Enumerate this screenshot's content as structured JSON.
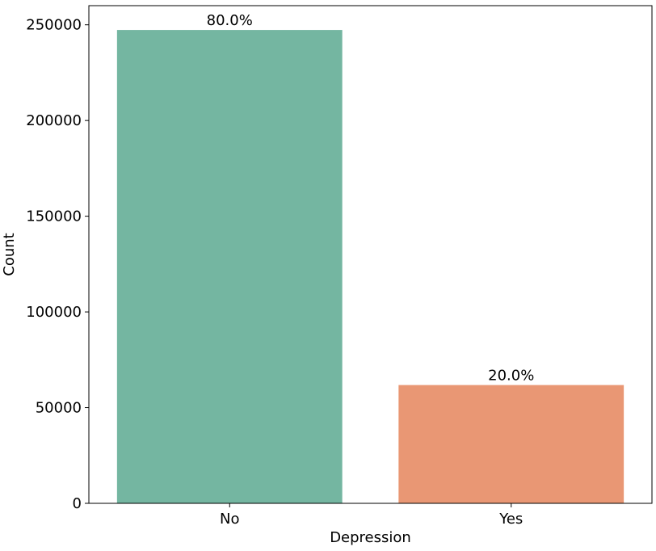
{
  "chart_data": {
    "type": "bar",
    "categories": [
      "No",
      "Yes"
    ],
    "values": [
      247300,
      61800
    ],
    "bar_labels": [
      "80.0%",
      "20.0%"
    ],
    "bar_colors": [
      "#74b6a1",
      "#e99774"
    ],
    "xlabel": "Depression",
    "ylabel": "Count",
    "ylim": [
      0,
      260000
    ],
    "yticks": [
      0,
      50000,
      100000,
      150000,
      200000,
      250000
    ],
    "ytick_labels": [
      "0",
      "50000",
      "100000",
      "150000",
      "200000",
      "250000"
    ],
    "grid": false,
    "legend": "none"
  }
}
